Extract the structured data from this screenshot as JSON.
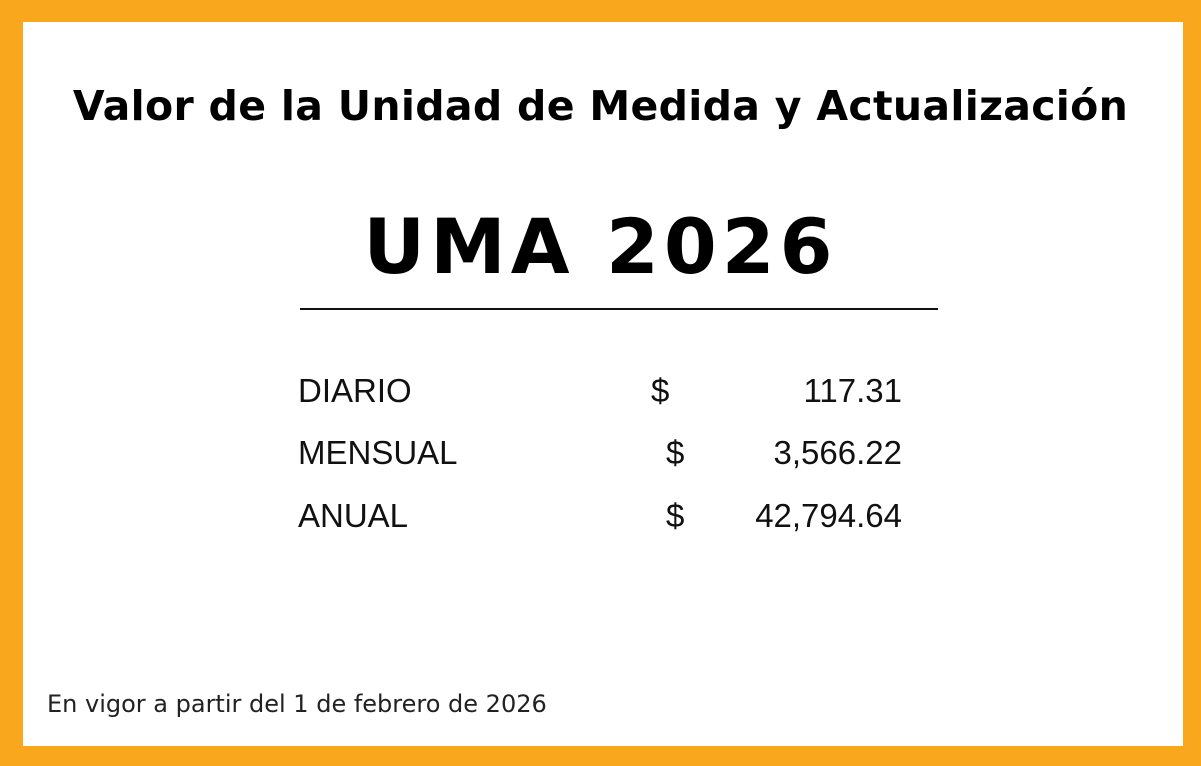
{
  "colors": {
    "border": "#F9A81E",
    "background": "#FFFFFF",
    "text": "#000000"
  },
  "title": "Valor de la Unidad de Medida y Actualización",
  "heading": "UMA 2026",
  "rows": [
    {
      "label": "DIARIO",
      "currency": "$",
      "value": "117.31"
    },
    {
      "label": "MENSUAL",
      "currency": "$",
      "value": "3,566.22"
    },
    {
      "label": "ANUAL",
      "currency": "$",
      "value": "42,794.64"
    }
  ],
  "footer": "En vigor a partir del 1 de febrero de 2026"
}
